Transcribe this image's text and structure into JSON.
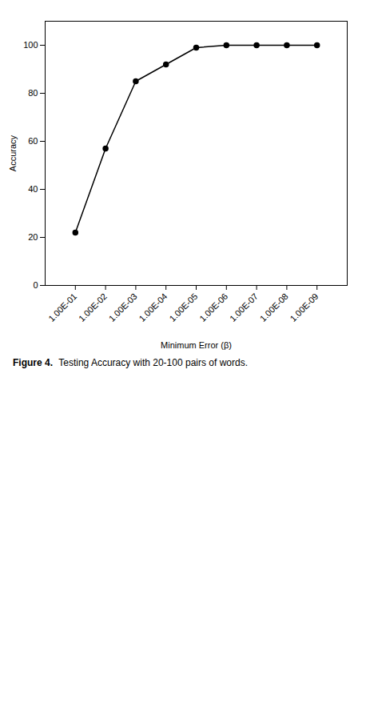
{
  "chart_data": {
    "type": "line",
    "title": "Figure 4.",
    "subtitle": "Testing Accuracy with 20-100 pairs of words.",
    "x": [
      0.1,
      0.01,
      0.001,
      0.0001,
      1e-05,
      1e-06,
      1e-07,
      1e-08,
      1e-09
    ],
    "values": [
      22,
      57,
      85,
      92,
      99,
      100,
      100,
      100,
      100
    ],
    "color": "#000000",
    "marker": "circle",
    "log": "x",
    "xlabel": "Minimum Error (β)",
    "ylabel": "Accuracy",
    "xlim": [
      1,
      1e-10
    ],
    "xticks": [
      {
        "value": 0.1,
        "label": "1.00E-01"
      },
      {
        "value": 0.01,
        "label": "1.00E-02"
      },
      {
        "value": 0.001,
        "label": "1.00E-03"
      },
      {
        "value": 0.0001,
        "label": "1.00E-04"
      },
      {
        "value": 1e-05,
        "label": "1.00E-05"
      },
      {
        "value": 1e-06,
        "label": "1.00E-06"
      },
      {
        "value": 1e-07,
        "label": "1.00E-07"
      },
      {
        "value": 1e-08,
        "label": "1.00E-08"
      },
      {
        "value": 1e-09,
        "label": "1.00E-09"
      }
    ],
    "ylim": [
      0,
      110
    ],
    "yticks": [
      0,
      20,
      40,
      60,
      80,
      100
    ],
    "grid": false
  }
}
